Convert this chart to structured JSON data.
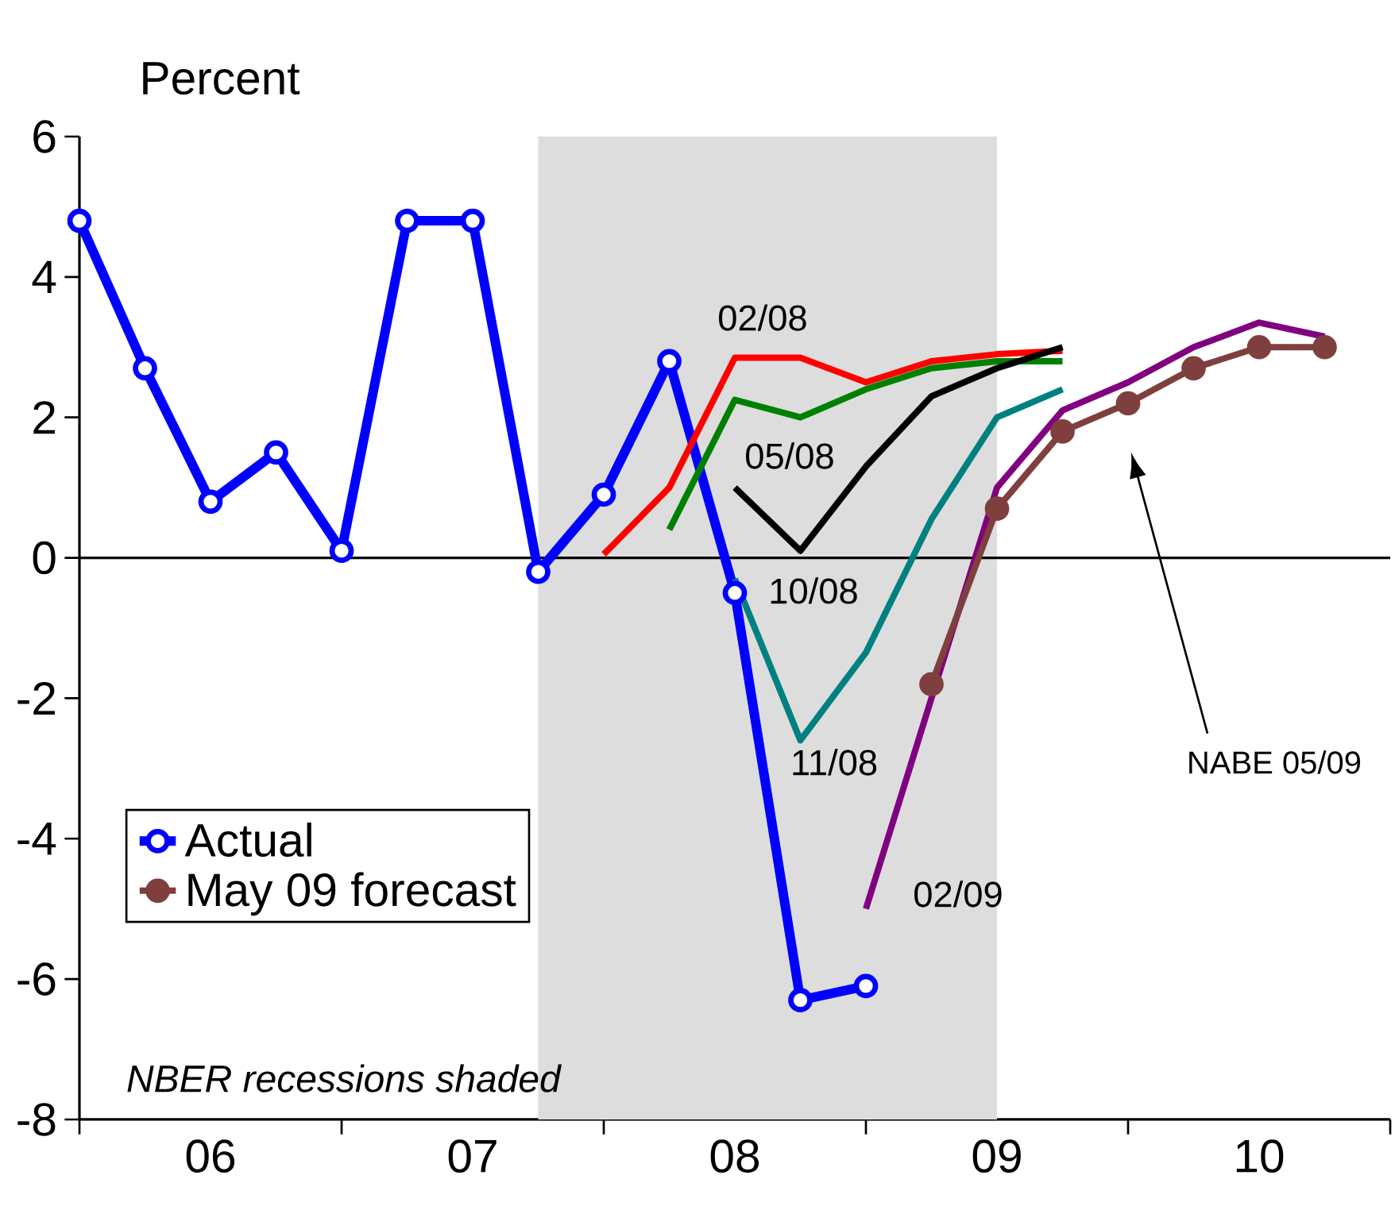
{
  "chart_data": {
    "type": "line",
    "ylabel": "Percent",
    "xlim": [
      "2006-01",
      "2011-01"
    ],
    "xticks": [
      {
        "value": "2006-01",
        "label": null
      },
      {
        "value": "2006-07",
        "label": "06"
      },
      {
        "value": "2007-01",
        "label": null
      },
      {
        "value": "2007-07",
        "label": "07"
      },
      {
        "value": "2008-01",
        "label": null
      },
      {
        "value": "2008-07",
        "label": "08"
      },
      {
        "value": "2009-01",
        "label": null
      },
      {
        "value": "2009-07",
        "label": "09"
      },
      {
        "value": "2010-01",
        "label": null
      },
      {
        "value": "2010-07",
        "label": "10"
      },
      {
        "value": "2011-01",
        "label": null
      }
    ],
    "ylim": [
      -8,
      6
    ],
    "yticks": [
      -8,
      -6,
      -4,
      -2,
      0,
      2,
      4,
      6
    ],
    "grid": false,
    "legend": "bottom left",
    "bands": [
      {
        "axis": "x",
        "from": "2007-10",
        "to": "2009-07",
        "color": "#dddddd"
      }
    ],
    "ref_lines": [
      {
        "axis": "y",
        "value": 0,
        "color": "#000000"
      }
    ],
    "series": [
      {
        "name": "Actual",
        "color": "#0000ff",
        "marker": "circle",
        "x": [
          "2006-01",
          "2006-04",
          "2006-07",
          "2006-10",
          "2007-01",
          "2007-04",
          "2007-07",
          "2007-10",
          "2008-01",
          "2008-04",
          "2008-07",
          "2008-10",
          "2009-01"
        ],
        "values": [
          4.8,
          2.7,
          0.8,
          1.5,
          0.1,
          4.8,
          4.8,
          -0.2,
          0.9,
          2.8,
          -0.5,
          -6.3,
          -6.1
        ]
      },
      {
        "color": "#ff0000",
        "marker": "none",
        "x": [
          "2008-01",
          "2008-04",
          "2008-07",
          "2008-10",
          "2009-01",
          "2009-04",
          "2009-07",
          "2009-10"
        ],
        "values": [
          0.05,
          1.0,
          2.85,
          2.85,
          2.5,
          2.8,
          2.9,
          2.95
        ]
      },
      {
        "color": "#008000",
        "marker": "none",
        "x": [
          "2008-04",
          "2008-07",
          "2008-10",
          "2009-01",
          "2009-04",
          "2009-07",
          "2009-10"
        ],
        "values": [
          0.4,
          2.25,
          2.0,
          2.4,
          2.7,
          2.8,
          2.8
        ]
      },
      {
        "color": "#000000",
        "marker": "none",
        "x": [
          "2008-07",
          "2008-10",
          "2009-01",
          "2009-04",
          "2009-07",
          "2009-10"
        ],
        "values": [
          1.0,
          0.1,
          1.3,
          2.3,
          2.7,
          3.0
        ]
      },
      {
        "color": "#008080",
        "marker": "none",
        "x": [
          "2008-07",
          "2008-10",
          "2009-01",
          "2009-04",
          "2009-07",
          "2009-10"
        ],
        "values": [
          -0.3,
          -2.6,
          -1.35,
          0.55,
          2.0,
          2.4
        ]
      },
      {
        "color": "#800080",
        "marker": "none",
        "x": [
          "2009-01",
          "2009-04",
          "2009-07",
          "2009-10",
          "2010-01",
          "2010-04",
          "2010-07",
          "2010-10"
        ],
        "values": [
          -5.0,
          -2.0,
          1.0,
          2.1,
          2.5,
          3.0,
          3.35,
          3.15
        ]
      },
      {
        "name": "May 09 forecast",
        "color": "#7f3f3f",
        "marker": "circle",
        "x": [
          "2009-04",
          "2009-07",
          "2009-10",
          "2010-01",
          "2010-04",
          "2010-07",
          "2010-10"
        ],
        "values": [
          -1.8,
          0.7,
          1.8,
          2.2,
          2.7,
          3.0,
          3.0
        ]
      }
    ],
    "annotations": [
      "02/08",
      "05/08",
      "10/08",
      "11/08",
      "02/09",
      "NABE 05/09",
      "NBER recessions shaded"
    ]
  }
}
